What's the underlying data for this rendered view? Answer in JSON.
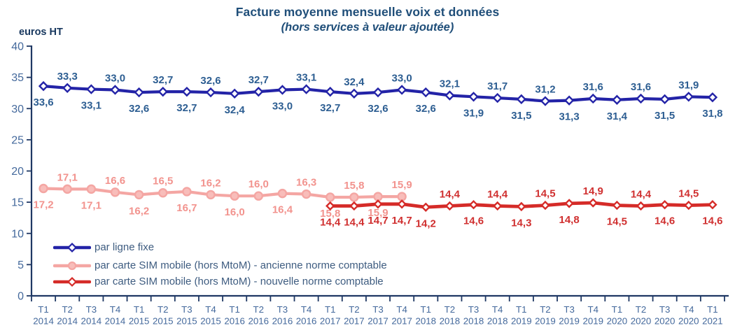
{
  "chart": {
    "title": "Facture moyenne mensuelle voix et données",
    "subtitle": "(hors services à valeur ajoutée)",
    "y_unit": "euros HT",
    "title_color": "#1F4E79"
  },
  "chart_data": {
    "type": "line",
    "title": "Facture moyenne mensuelle voix et données",
    "subtitle": "(hors services à valeur ajoutée)",
    "ylabel": "euros HT",
    "xlabel": "",
    "ylim": [
      0,
      40
    ],
    "y_ticks": [
      0,
      5,
      10,
      15,
      20,
      25,
      30,
      35,
      40
    ],
    "grid": false,
    "legend_position": "inside-bottom-left",
    "axis_color": "#1F3864",
    "tick_label_color": "#44699C",
    "x_labels": [
      [
        "T1",
        "2014"
      ],
      [
        "T2",
        "2014"
      ],
      [
        "T3",
        "2014"
      ],
      [
        "T4",
        "2014"
      ],
      [
        "T1",
        "2015"
      ],
      [
        "T2",
        "2015"
      ],
      [
        "T3",
        "2015"
      ],
      [
        "T4",
        "2015"
      ],
      [
        "T1",
        "2016"
      ],
      [
        "T2",
        "2016"
      ],
      [
        "T3",
        "2016"
      ],
      [
        "T4",
        "2016"
      ],
      [
        "T1",
        "2017"
      ],
      [
        "T2",
        "2017"
      ],
      [
        "T3",
        "2017"
      ],
      [
        "T4",
        "2017"
      ],
      [
        "T1",
        "2018"
      ],
      [
        "T2",
        "2018"
      ],
      [
        "T3",
        "2018"
      ],
      [
        "T4",
        "2018"
      ],
      [
        "T1",
        "2019"
      ],
      [
        "T2",
        "2019"
      ],
      [
        "T3",
        "2019"
      ],
      [
        "T4",
        "2019"
      ],
      [
        "T1",
        "2020"
      ],
      [
        "T2",
        "2020"
      ],
      [
        "T3",
        "2020"
      ],
      [
        "T4",
        "2020"
      ],
      [
        "T1",
        "2021"
      ]
    ],
    "series": [
      {
        "name": "par ligne fixe",
        "color": "#2323A7",
        "marker": "diamond",
        "marker_fill": "#FFFFFF",
        "label_color": "#2D5E92",
        "stroke_width": 4.2,
        "start_index": 0,
        "values": [
          33.6,
          33.3,
          33.1,
          33.0,
          32.6,
          32.7,
          32.7,
          32.6,
          32.4,
          32.7,
          33.0,
          33.1,
          32.7,
          32.4,
          32.6,
          33.0,
          32.6,
          32.1,
          31.9,
          31.7,
          31.5,
          31.2,
          31.3,
          31.6,
          31.4,
          31.6,
          31.5,
          31.9,
          31.8
        ],
        "label_side": [
          "below",
          "above",
          "below",
          "above",
          "below",
          "above",
          "below",
          "above",
          "below",
          "above",
          "below",
          "above",
          "below",
          "above",
          "below",
          "above",
          "below",
          "above",
          "below",
          "above",
          "below",
          "above",
          "below",
          "above",
          "below",
          "above",
          "below",
          "above",
          "below"
        ]
      },
      {
        "name": "par carte SIM mobile (hors MtoM)  - ancienne norme comptable",
        "color": "#F4A6A3",
        "marker": "circle",
        "marker_fill": "#F8BDBA",
        "label_color": "#F2938E",
        "stroke_width": 4.2,
        "start_index": 0,
        "values": [
          17.2,
          17.1,
          17.1,
          16.6,
          16.2,
          16.5,
          16.7,
          16.2,
          16.0,
          16.0,
          16.4,
          16.3,
          15.8,
          15.8,
          15.9,
          15.9
        ],
        "label_side": [
          "below",
          "above",
          "below",
          "above",
          "below",
          "above",
          "below",
          "above",
          "below",
          "above",
          "below",
          "above",
          "below",
          "above",
          "below",
          "above"
        ]
      },
      {
        "name": "par carte SIM mobile (hors MtoM)  - nouvelle norme comptable",
        "color": "#D52B28",
        "marker": "diamond",
        "marker_fill": "#FFFFFF",
        "label_color": "#D03030",
        "stroke_width": 4.8,
        "start_index": 12,
        "values": [
          14.4,
          14.4,
          14.7,
          14.7,
          14.2,
          14.4,
          14.6,
          14.4,
          14.3,
          14.5,
          14.8,
          14.9,
          14.5,
          14.4,
          14.6,
          14.5,
          14.6
        ],
        "label_side": [
          "below",
          "below",
          "below",
          "below",
          "below",
          "above",
          "below",
          "above",
          "below",
          "above",
          "below",
          "above",
          "below",
          "above",
          "below",
          "above",
          "below"
        ]
      }
    ]
  }
}
